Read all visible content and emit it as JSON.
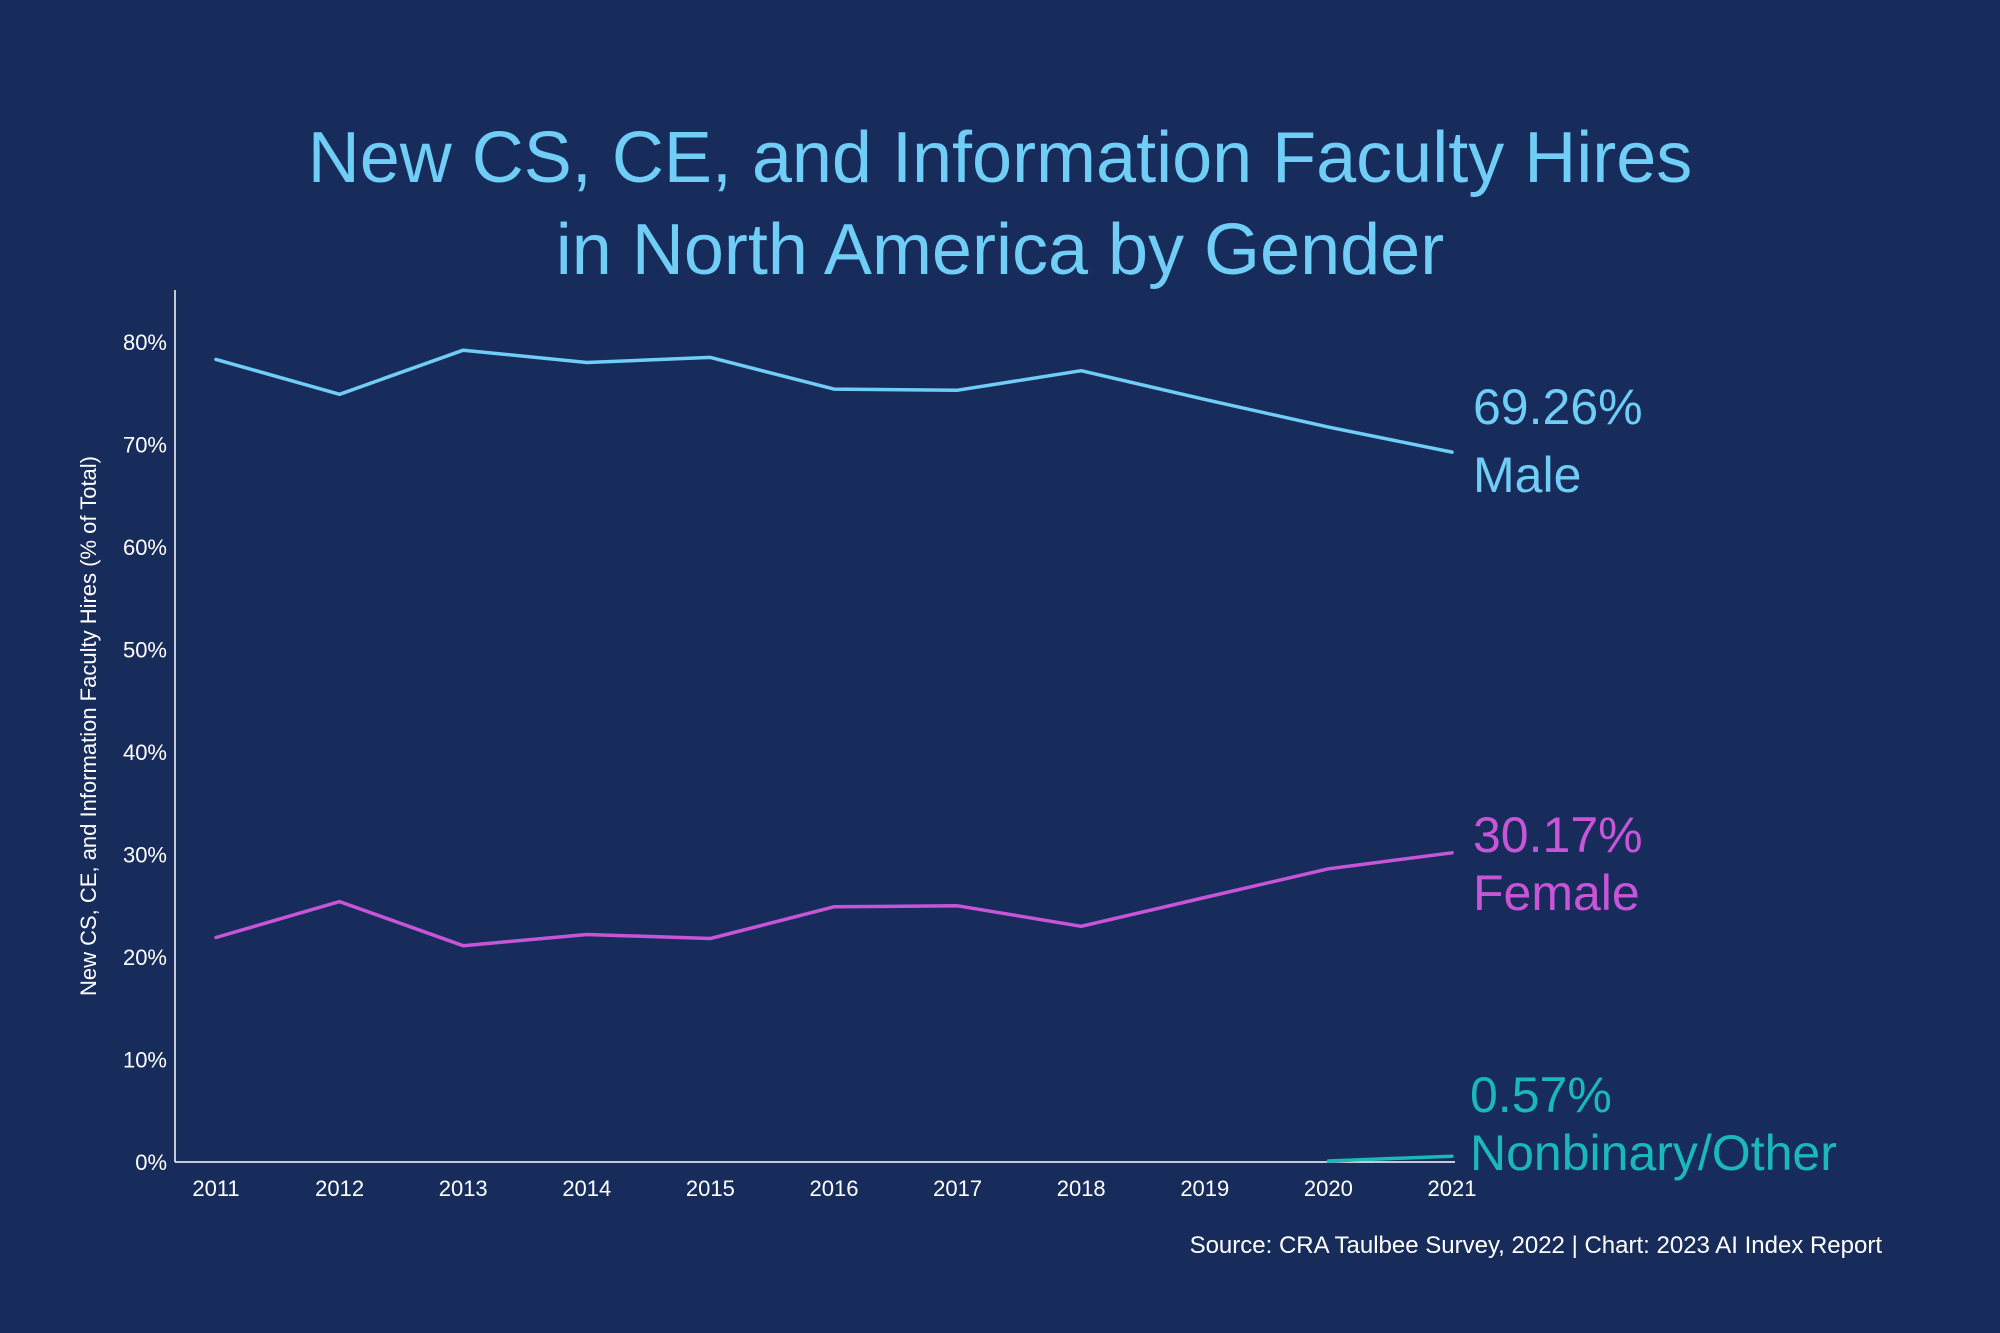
{
  "chart_data": {
    "type": "line",
    "title": "New CS, CE, and Information Faculty Hires\nin North America by Gender",
    "title_lines": [
      "New CS, CE, and Information Faculty Hires",
      "in North America by Gender"
    ],
    "ylabel": "New CS, CE, and Information Faculty Hires (% of Total)",
    "xlabel": "",
    "x": [
      "2011",
      "2012",
      "2013",
      "2014",
      "2015",
      "2016",
      "2017",
      "2018",
      "2019",
      "2020",
      "2021"
    ],
    "ylim": [
      0,
      80
    ],
    "yticks": [
      "0%",
      "10%",
      "20%",
      "30%",
      "40%",
      "50%",
      "60%",
      "70%",
      "80%"
    ],
    "grid": false,
    "series": [
      {
        "name": "Male",
        "color": "#6fcdf6",
        "values": [
          78.3,
          74.9,
          79.2,
          78.0,
          78.5,
          75.4,
          75.3,
          77.2,
          74.4,
          71.7,
          69.26
        ],
        "end_value_label": "69.26%"
      },
      {
        "name": "Female",
        "color": "#c855d8",
        "values": [
          21.9,
          25.4,
          21.1,
          22.2,
          21.8,
          24.9,
          25.0,
          23.0,
          25.8,
          28.6,
          30.17
        ],
        "end_value_label": "30.17%"
      },
      {
        "name": "Nonbinary/Other",
        "color": "#1ab8b8",
        "values": [
          null,
          null,
          null,
          null,
          null,
          null,
          null,
          null,
          null,
          0.1,
          0.57
        ],
        "end_value_label": "0.57%"
      }
    ]
  },
  "source": "Source: CRA Taulbee Survey, 2022 | Chart: 2023 AI Index Report"
}
